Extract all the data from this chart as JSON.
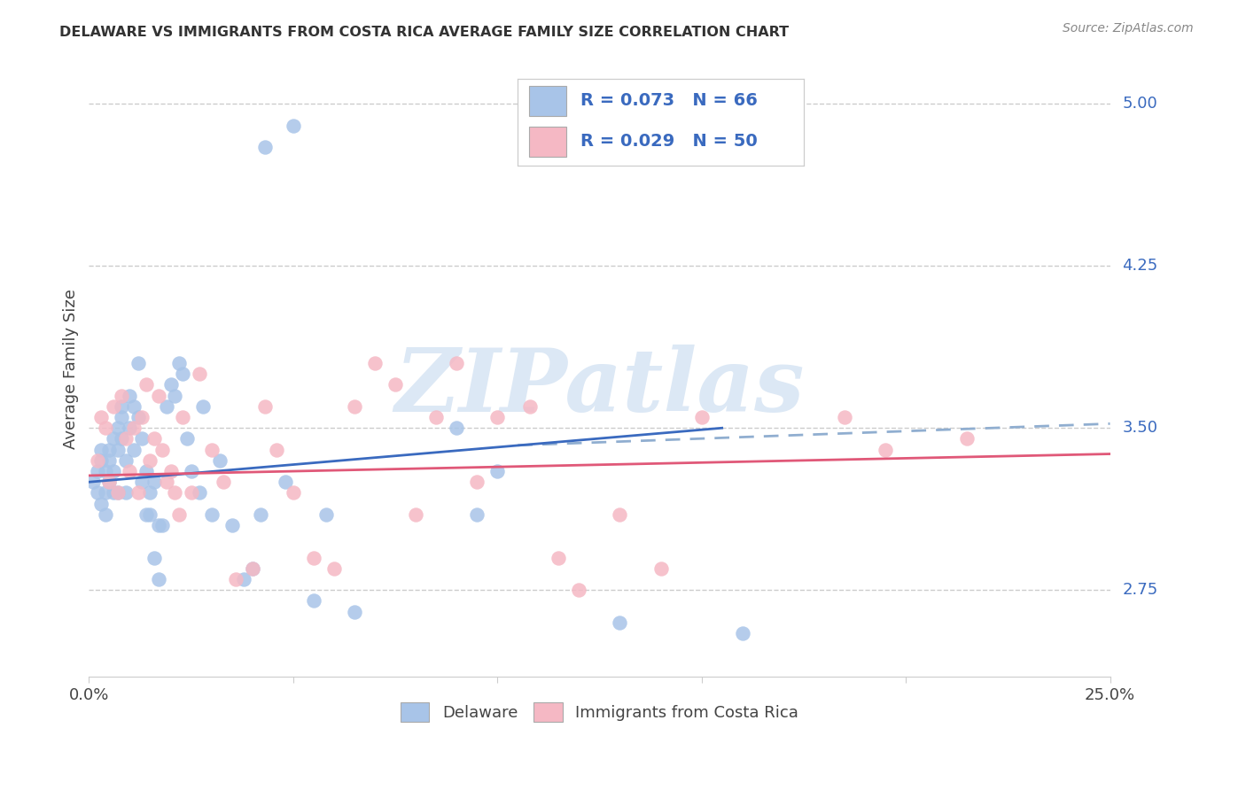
{
  "title": "DELAWARE VS IMMIGRANTS FROM COSTA RICA AVERAGE FAMILY SIZE CORRELATION CHART",
  "source": "Source: ZipAtlas.com",
  "ylabel": "Average Family Size",
  "yticks": [
    2.75,
    3.5,
    4.25,
    5.0
  ],
  "xlim": [
    0.0,
    0.25
  ],
  "ylim": [
    2.35,
    5.2
  ],
  "legend1_R": "0.073",
  "legend1_N": "66",
  "legend2_R": "0.029",
  "legend2_N": "50",
  "legend_label1": "Delaware",
  "legend_label2": "Immigrants from Costa Rica",
  "color_blue": "#a8c4e8",
  "color_pink": "#f5b8c4",
  "color_blue_line": "#3a6abf",
  "color_pink_line": "#e05878",
  "color_blue_text": "#3a6abf",
  "color_dashed": "#90aed0",
  "blue_points_x": [
    0.001,
    0.002,
    0.002,
    0.003,
    0.003,
    0.003,
    0.004,
    0.004,
    0.004,
    0.005,
    0.005,
    0.005,
    0.006,
    0.006,
    0.006,
    0.007,
    0.007,
    0.007,
    0.008,
    0.008,
    0.008,
    0.009,
    0.009,
    0.01,
    0.01,
    0.011,
    0.011,
    0.012,
    0.012,
    0.013,
    0.013,
    0.014,
    0.014,
    0.015,
    0.015,
    0.016,
    0.016,
    0.017,
    0.017,
    0.018,
    0.019,
    0.02,
    0.021,
    0.022,
    0.023,
    0.024,
    0.025,
    0.027,
    0.028,
    0.03,
    0.032,
    0.035,
    0.038,
    0.04,
    0.042,
    0.043,
    0.048,
    0.05,
    0.055,
    0.058,
    0.065,
    0.09,
    0.095,
    0.1,
    0.13,
    0.16
  ],
  "blue_points_y": [
    3.25,
    3.2,
    3.3,
    3.15,
    3.35,
    3.4,
    3.2,
    3.1,
    3.3,
    3.25,
    3.4,
    3.35,
    3.2,
    3.45,
    3.3,
    3.5,
    3.2,
    3.4,
    3.45,
    3.6,
    3.55,
    3.2,
    3.35,
    3.5,
    3.65,
    3.4,
    3.6,
    3.55,
    3.8,
    3.45,
    3.25,
    3.1,
    3.3,
    3.2,
    3.1,
    2.9,
    3.25,
    3.05,
    2.8,
    3.05,
    3.6,
    3.7,
    3.65,
    3.8,
    3.75,
    3.45,
    3.3,
    3.2,
    3.6,
    3.1,
    3.35,
    3.05,
    2.8,
    2.85,
    3.1,
    4.8,
    3.25,
    4.9,
    2.7,
    3.1,
    2.65,
    3.5,
    3.1,
    3.3,
    2.6,
    2.55
  ],
  "pink_points_x": [
    0.002,
    0.003,
    0.004,
    0.005,
    0.006,
    0.007,
    0.008,
    0.009,
    0.01,
    0.011,
    0.012,
    0.013,
    0.014,
    0.015,
    0.016,
    0.017,
    0.018,
    0.019,
    0.02,
    0.021,
    0.022,
    0.023,
    0.025,
    0.027,
    0.03,
    0.033,
    0.036,
    0.04,
    0.043,
    0.046,
    0.05,
    0.055,
    0.06,
    0.065,
    0.07,
    0.075,
    0.08,
    0.085,
    0.09,
    0.095,
    0.1,
    0.108,
    0.115,
    0.12,
    0.13,
    0.14,
    0.15,
    0.185,
    0.195,
    0.215
  ],
  "pink_points_y": [
    3.35,
    3.55,
    3.5,
    3.25,
    3.6,
    3.2,
    3.65,
    3.45,
    3.3,
    3.5,
    3.2,
    3.55,
    3.7,
    3.35,
    3.45,
    3.65,
    3.4,
    3.25,
    3.3,
    3.2,
    3.1,
    3.55,
    3.2,
    3.75,
    3.4,
    3.25,
    2.8,
    2.85,
    3.6,
    3.4,
    3.2,
    2.9,
    2.85,
    3.6,
    3.8,
    3.7,
    3.1,
    3.55,
    3.8,
    3.25,
    3.55,
    3.6,
    2.9,
    2.75,
    3.1,
    2.85,
    3.55,
    3.55,
    3.4,
    3.45
  ],
  "blue_line_x": [
    0.0,
    0.155
  ],
  "blue_line_y": [
    3.25,
    3.5
  ],
  "dashed_line_x": [
    0.105,
    0.25
  ],
  "dashed_line_y": [
    3.42,
    3.52
  ],
  "pink_line_x": [
    0.0,
    0.25
  ],
  "pink_line_y": [
    3.28,
    3.38
  ],
  "background_color": "#ffffff",
  "grid_color": "#cccccc",
  "watermark_text": "ZIPatlas",
  "watermark_color": "#dce8f5"
}
